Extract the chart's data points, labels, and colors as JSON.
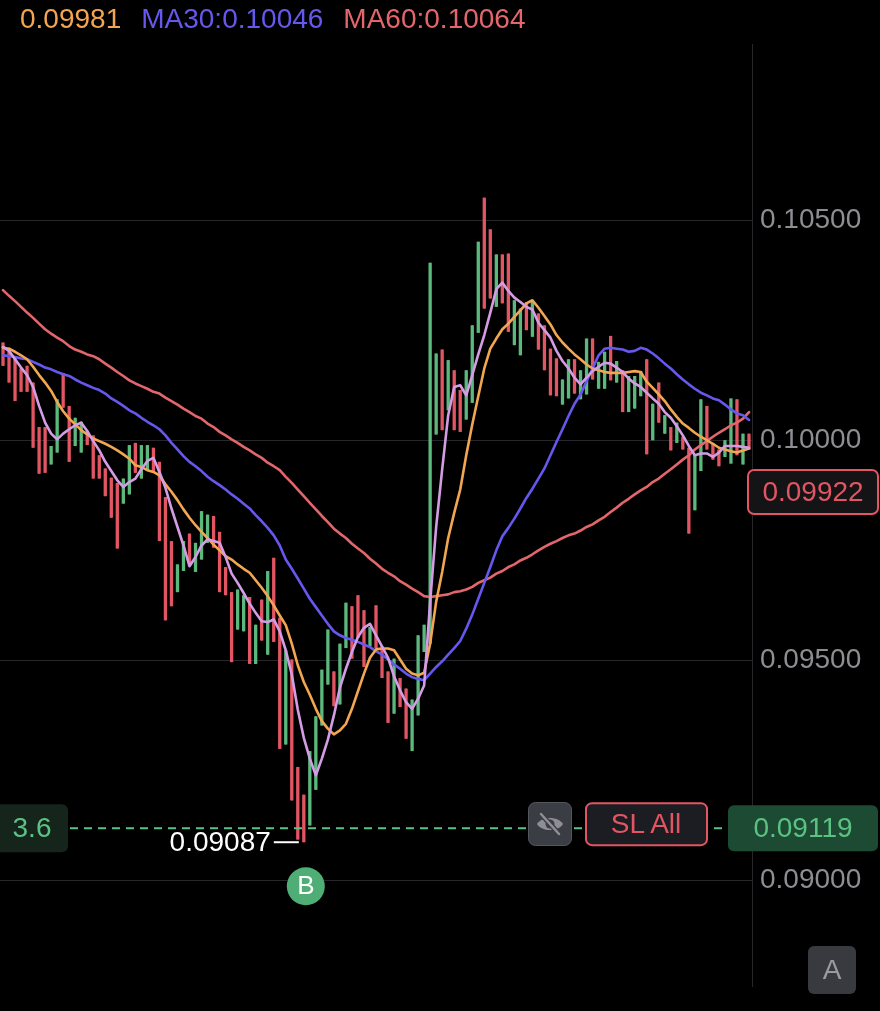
{
  "chart_data": {
    "type": "candlestick",
    "categories": [
      null,
      null,
      null,
      null,
      null,
      null,
      null,
      null,
      null,
      null,
      null,
      null,
      null,
      null,
      null,
      null,
      null,
      null,
      null,
      null,
      null,
      null,
      null,
      null,
      null,
      null,
      null,
      null,
      null,
      null,
      null,
      null,
      null,
      null,
      null,
      null,
      null,
      null,
      null,
      null,
      null,
      null,
      null,
      null,
      null,
      null,
      null,
      null,
      null,
      null,
      null,
      null,
      null,
      null,
      null,
      null,
      null,
      null,
      null,
      null,
      null,
      null,
      null,
      null,
      null,
      null,
      null,
      null,
      null,
      null,
      null,
      null,
      null,
      null,
      null,
      null,
      null,
      null,
      null,
      null,
      null,
      null,
      null,
      null,
      null,
      null,
      null,
      null,
      null,
      null,
      null,
      null,
      null,
      null,
      null,
      null,
      null,
      null,
      null,
      null,
      null,
      null,
      null,
      null,
      null,
      null,
      null,
      null,
      null,
      null,
      null,
      null,
      null,
      null,
      null,
      null,
      null,
      null,
      null,
      null,
      null,
      null,
      null,
      null,
      null
    ],
    "ohlc": [
      [
        0.10222,
        0.10222,
        0.10169,
        0.10169
      ],
      [
        0.1021,
        0.1021,
        0.10131,
        0.10131
      ],
      [
        0.10191,
        0.10191,
        0.10089,
        0.10089
      ],
      [
        0.10163,
        0.10163,
        0.1011,
        0.1011
      ],
      [
        0.10169,
        0.10169,
        0.1011,
        0.1011
      ],
      [
        0.10131,
        0.10131,
        0.09983,
        0.09983
      ],
      [
        0.1003,
        0.1003,
        0.09924,
        0.09924
      ],
      [
        0.1003,
        0.1003,
        0.09926,
        0.09926
      ],
      [
        0.09945,
        0.09987,
        0.09945,
        0.09987
      ],
      [
        0.09972,
        0.10093,
        0.09972,
        0.10093
      ],
      [
        0.10153,
        0.10153,
        0.10074,
        0.10074
      ],
      [
        0.10078,
        0.10078,
        0.09951,
        0.09951
      ],
      [
        0.09987,
        0.10051,
        0.09987,
        0.10051
      ],
      [
        0.09972,
        0.10042,
        0.09972,
        0.10042
      ],
      [
        0.10021,
        0.10021,
        0.09989,
        0.09989
      ],
      [
        0.10011,
        0.10011,
        0.09913,
        0.09913
      ],
      [
        0.09966,
        0.09966,
        0.09913,
        0.09913
      ],
      [
        0.09936,
        0.09936,
        0.09873,
        0.09873
      ],
      [
        0.09915,
        0.09915,
        0.09824,
        0.09824
      ],
      [
        0.09903,
        0.09903,
        0.09754,
        0.09754
      ],
      [
        0.09856,
        0.09913,
        0.09856,
        0.09913
      ],
      [
        0.09877,
        0.09989,
        0.09877,
        0.09989
      ],
      [
        0.09994,
        0.09994,
        0.09926,
        0.09926
      ],
      [
        0.09913,
        0.09989,
        0.09913,
        0.09989
      ],
      [
        0.0993,
        0.09989,
        0.0993,
        0.09989
      ],
      [
        0.09983,
        0.09983,
        0.09926,
        0.09926
      ],
      [
        0.09951,
        0.09951,
        0.09771,
        0.09771
      ],
      [
        0.09871,
        0.09871,
        0.09591,
        0.09591
      ],
      [
        0.09771,
        0.09771,
        0.09623,
        0.09623
      ],
      [
        0.09655,
        0.09718,
        0.09655,
        0.09718
      ],
      [
        0.09703,
        0.09771,
        0.09703,
        0.09771
      ],
      [
        0.09788,
        0.09788,
        0.09714,
        0.09714
      ],
      [
        0.09701,
        0.09767,
        0.09701,
        0.09767
      ],
      [
        0.09729,
        0.09839,
        0.09729,
        0.09839
      ],
      [
        0.09767,
        0.09831,
        0.09767,
        0.09831
      ],
      [
        0.09828,
        0.09828,
        0.09756,
        0.09756
      ],
      [
        0.09792,
        0.09792,
        0.09655,
        0.09655
      ],
      [
        0.09712,
        0.09712,
        0.09648,
        0.09648
      ],
      [
        0.09655,
        0.09655,
        0.09496,
        0.09496
      ],
      [
        0.0957,
        0.09661,
        0.0957,
        0.09661
      ],
      [
        0.09566,
        0.09648,
        0.09566,
        0.09648
      ],
      [
        0.09644,
        0.09644,
        0.09492,
        0.09492
      ],
      [
        0.09492,
        0.09581,
        0.09492,
        0.09581
      ],
      [
        0.09638,
        0.09638,
        0.09545,
        0.09545
      ],
      [
        0.09513,
        0.09703,
        0.09513,
        0.09703
      ],
      [
        0.09733,
        0.09733,
        0.09542,
        0.09542
      ],
      [
        0.09597,
        0.09597,
        0.09299,
        0.09299
      ],
      [
        0.09309,
        0.09523,
        0.09309,
        0.09523
      ],
      [
        0.09502,
        0.09502,
        0.09182,
        0.09182
      ],
      [
        0.09258,
        0.09258,
        0.09093,
        0.09093
      ],
      [
        0.09195,
        0.09195,
        0.09087,
        0.09087
      ],
      [
        0.09125,
        0.09294,
        0.09125,
        0.09294
      ],
      [
        0.09206,
        0.09373,
        0.09206,
        0.09373
      ],
      [
        0.09352,
        0.09479,
        0.09352,
        0.09479
      ],
      [
        0.09445,
        0.0957,
        0.09445,
        0.0957
      ],
      [
        0.09475,
        0.09475,
        0.09396,
        0.09396
      ],
      [
        0.094,
        0.09538,
        0.094,
        0.09538
      ],
      [
        0.09528,
        0.09631,
        0.09528,
        0.09631
      ],
      [
        0.09623,
        0.09623,
        0.09504,
        0.09504
      ],
      [
        0.09648,
        0.09648,
        0.09551,
        0.09551
      ],
      [
        0.09614,
        0.09614,
        0.09485,
        0.09485
      ],
      [
        0.09532,
        0.09576,
        0.09532,
        0.09576
      ],
      [
        0.09625,
        0.09625,
        0.09528,
        0.09528
      ],
      [
        0.09532,
        0.09532,
        0.0946,
        0.0946
      ],
      [
        0.09475,
        0.09475,
        0.09358,
        0.09358
      ],
      [
        0.09379,
        0.09504,
        0.09379,
        0.09504
      ],
      [
        0.0946,
        0.0946,
        0.09394,
        0.09394
      ],
      [
        0.09436,
        0.09436,
        0.09322,
        0.09322
      ],
      [
        0.09294,
        0.09411,
        0.09294,
        0.09411
      ],
      [
        0.09375,
        0.09557,
        0.09375,
        0.09557
      ],
      [
        0.09519,
        0.09581,
        0.09519,
        0.09581
      ],
      [
        0.09538,
        0.10403,
        0.09538,
        0.10403
      ],
      [
        0.10013,
        0.10197,
        0.10013,
        0.10197
      ],
      [
        0.10206,
        0.10206,
        0.10023,
        0.10023
      ],
      [
        0.10068,
        0.10182,
        0.10068,
        0.10182
      ],
      [
        0.10159,
        0.10159,
        0.10023,
        0.10023
      ],
      [
        0.10114,
        0.10114,
        0.10019,
        0.10019
      ],
      [
        0.10047,
        0.10159,
        0.10047,
        0.10159
      ],
      [
        0.10085,
        0.10261,
        0.10085,
        0.10261
      ],
      [
        0.10244,
        0.10451,
        0.10244,
        0.10451
      ],
      [
        0.10551,
        0.10551,
        0.10299,
        0.10299
      ],
      [
        0.10479,
        0.10479,
        0.10322,
        0.10322
      ],
      [
        0.10303,
        0.10422,
        0.10303,
        0.10422
      ],
      [
        0.10422,
        0.10422,
        0.10311,
        0.10311
      ],
      [
        0.10424,
        0.10424,
        0.10246,
        0.10246
      ],
      [
        0.10216,
        0.10318,
        0.10216,
        0.10318
      ],
      [
        0.10193,
        0.10299,
        0.10193,
        0.10299
      ],
      [
        0.10314,
        0.10314,
        0.1025,
        0.1025
      ],
      [
        0.10235,
        0.10314,
        0.10235,
        0.10314
      ],
      [
        0.10288,
        0.10288,
        0.10206,
        0.10206
      ],
      [
        0.10261,
        0.10261,
        0.10159,
        0.10159
      ],
      [
        0.10208,
        0.10208,
        0.10102,
        0.10102
      ],
      [
        0.10186,
        0.10186,
        0.101,
        0.101
      ],
      [
        0.10081,
        0.10138,
        0.10081,
        0.10138
      ],
      [
        0.10095,
        0.10184,
        0.10095,
        0.10184
      ],
      [
        0.10184,
        0.10184,
        0.10106,
        0.10106
      ],
      [
        0.10093,
        0.10159,
        0.10093,
        0.10159
      ],
      [
        0.10104,
        0.10231,
        0.10104,
        0.10231
      ],
      [
        0.10231,
        0.10231,
        0.10138,
        0.10138
      ],
      [
        0.10117,
        0.10178,
        0.10117,
        0.10178
      ],
      [
        0.10117,
        0.10201,
        0.10117,
        0.10201
      ],
      [
        0.10237,
        0.10237,
        0.10136,
        0.10136
      ],
      [
        0.10131,
        0.1018,
        0.10131,
        0.1018
      ],
      [
        0.10159,
        0.10159,
        0.10064,
        0.10064
      ],
      [
        0.10064,
        0.10146,
        0.10064,
        0.10146
      ],
      [
        0.10072,
        0.10146,
        0.10072,
        0.10146
      ],
      [
        0.101,
        0.10157,
        0.101,
        0.10157
      ],
      [
        0.10184,
        0.10184,
        0.09968,
        0.09968
      ],
      [
        0.1,
        0.10083,
        0.1,
        0.10083
      ],
      [
        0.10131,
        0.10131,
        0.1004,
        0.1004
      ],
      [
        0.10015,
        0.10057,
        0.10015,
        0.10057
      ],
      [
        0.1003,
        0.1003,
        0.09977,
        0.09977
      ],
      [
        0.09994,
        0.1004,
        0.09994,
        0.1004
      ],
      [
        0.10008,
        0.10008,
        0.09979,
        0.09979
      ],
      [
        0.09983,
        0.09983,
        0.09788,
        0.09788
      ],
      [
        0.09841,
        0.09968,
        0.09841,
        0.09968
      ],
      [
        0.0993,
        0.10093,
        0.0993,
        0.10093
      ],
      [
        0.10078,
        0.10078,
        0.09979,
        0.09979
      ],
      [
        0.09994,
        0.09994,
        0.09956,
        0.09956
      ],
      [
        0.09979,
        0.09979,
        0.09941,
        0.09941
      ],
      [
        0.09962,
        0.1,
        0.09962,
        0.1
      ],
      [
        0.09947,
        0.10095,
        0.09947,
        0.10095
      ],
      [
        0.10093,
        0.10093,
        0.09966,
        0.09966
      ],
      [
        0.09945,
        0.10015,
        0.09945,
        0.10015
      ],
      [
        0.10015,
        0.10015,
        0.09979,
        0.09979
      ]
    ],
    "colors": [
      "#e25563",
      "#e25563",
      "#e25563",
      "#e25563",
      "#e25563",
      "#e25563",
      "#e25563",
      "#e25563",
      "#5bb97e",
      "#5bb97e",
      "#e25563",
      "#e25563",
      "#5bb97e",
      "#5bb97e",
      "#e25563",
      "#e25563",
      "#e25563",
      "#e25563",
      "#e25563",
      "#e25563",
      "#5bb97e",
      "#5bb97e",
      "#e25563",
      "#5bb97e",
      "#5bb97e",
      "#e25563",
      "#e25563",
      "#e25563",
      "#e25563",
      "#5bb97e",
      "#5bb97e",
      "#e25563",
      "#5bb97e",
      "#5bb97e",
      "#5bb97e",
      "#e25563",
      "#e25563",
      "#e25563",
      "#e25563",
      "#5bb97e",
      "#5bb97e",
      "#e25563",
      "#5bb97e",
      "#e25563",
      "#5bb97e",
      "#e25563",
      "#e25563",
      "#5bb97e",
      "#e25563",
      "#e25563",
      "#e25563",
      "#5bb97e",
      "#5bb97e",
      "#5bb97e",
      "#5bb97e",
      "#e25563",
      "#5bb97e",
      "#5bb97e",
      "#e25563",
      "#e25563",
      "#e25563",
      "#5bb97e",
      "#e25563",
      "#e25563",
      "#e25563",
      "#5bb97e",
      "#e25563",
      "#e25563",
      "#5bb97e",
      "#5bb97e",
      "#5bb97e",
      "#5bb97e",
      "#5bb97e",
      "#e25563",
      "#5bb97e",
      "#e25563",
      "#e25563",
      "#5bb97e",
      "#5bb97e",
      "#5bb97e",
      "#e25563",
      "#e25563",
      "#5bb97e",
      "#e25563",
      "#e25563",
      "#5bb97e",
      "#5bb97e",
      "#e25563",
      "#5bb97e",
      "#e25563",
      "#e25563",
      "#e25563",
      "#e25563",
      "#5bb97e",
      "#5bb97e",
      "#e25563",
      "#5bb97e",
      "#5bb97e",
      "#e25563",
      "#5bb97e",
      "#5bb97e",
      "#e25563",
      "#5bb97e",
      "#e25563",
      "#5bb97e",
      "#5bb97e",
      "#5bb97e",
      "#e25563",
      "#5bb97e",
      "#e25563",
      "#5bb97e",
      "#e25563",
      "#5bb97e",
      "#e25563",
      "#e25563",
      "#5bb97e",
      "#5bb97e",
      "#e25563",
      "#e25563",
      "#e25563",
      "#5bb97e",
      "#5bb97e",
      "#e25563",
      "#5bb97e",
      "#e25563"
    ],
    "series": [
      {
        "type": "line",
        "color": "#d49de3",
        "values": [
          0.10212,
          0.10203,
          0.10184,
          0.10165,
          0.10148,
          0.10121,
          0.10078,
          0.1004,
          0.10015,
          0.10002,
          0.10015,
          0.10025,
          0.10034,
          0.1004,
          0.10021,
          0.09998,
          0.09977,
          0.09951,
          0.0993,
          0.09909,
          0.09894,
          0.09905,
          0.09913,
          0.09934,
          0.09953,
          0.0996,
          0.09928,
          0.09892,
          0.09845,
          0.09803,
          0.09761,
          0.09714,
          0.09735,
          0.09761,
          0.09775,
          0.09771,
          0.09767,
          0.09735,
          0.09697,
          0.09676,
          0.09653,
          0.09629,
          0.09608,
          0.09589,
          0.09587,
          0.09593,
          0.09566,
          0.09523,
          0.09468,
          0.09388,
          0.09324,
          0.09277,
          0.09239,
          0.09277,
          0.0932,
          0.09375,
          0.09438,
          0.09481,
          0.09519,
          0.09553,
          0.09574,
          0.09583,
          0.09557,
          0.09532,
          0.09506,
          0.09464,
          0.09432,
          0.09405,
          0.0939,
          0.09413,
          0.09443,
          0.09633,
          0.09803,
          0.09934,
          0.10057,
          0.10121,
          0.10125,
          0.10102,
          0.10148,
          0.10195,
          0.10239,
          0.1029,
          0.10343,
          0.10358,
          0.10339,
          0.10324,
          0.10314,
          0.10303,
          0.10297,
          0.10267,
          0.1025,
          0.10233,
          0.10203,
          0.1018,
          0.10163,
          0.10142,
          0.10127,
          0.10142,
          0.10157,
          0.10167,
          0.10176,
          0.10174,
          0.10165,
          0.10155,
          0.1014,
          0.10129,
          0.10121,
          0.10108,
          0.10095,
          0.10083,
          0.10064,
          0.10051,
          0.10032,
          0.10011,
          0.09987,
          0.09966,
          0.0997,
          0.0997,
          0.09962,
          0.09972,
          0.09987,
          0.09987,
          0.09987,
          0.09985,
          0.09983
        ]
      },
      {
        "type": "line",
        "name": "0.09981",
        "color": "#f2a652",
        "values": [
          0.1021,
          0.10208,
          0.10201,
          0.10193,
          0.10184,
          0.10167,
          0.10148,
          0.10131,
          0.10112,
          0.10087,
          0.10066,
          0.10049,
          0.10036,
          0.10023,
          0.10013,
          0.10004,
          0.09998,
          0.09992,
          0.09985,
          0.09977,
          0.09968,
          0.09958,
          0.09943,
          0.09939,
          0.09932,
          0.09928,
          0.0992,
          0.099,
          0.09883,
          0.09864,
          0.09843,
          0.09824,
          0.09807,
          0.09792,
          0.09778,
          0.09763,
          0.0975,
          0.09737,
          0.09729,
          0.09718,
          0.09708,
          0.09699,
          0.09682,
          0.09665,
          0.09646,
          0.09625,
          0.09602,
          0.0958,
          0.09538,
          0.09489,
          0.09451,
          0.09422,
          0.0939,
          0.09362,
          0.09345,
          0.09332,
          0.09341,
          0.09356,
          0.0939,
          0.0943,
          0.0947,
          0.09506,
          0.09525,
          0.09527,
          0.09527,
          0.09523,
          0.09502,
          0.09481,
          0.0947,
          0.09466,
          0.09472,
          0.09538,
          0.09633,
          0.09701,
          0.09778,
          0.09835,
          0.09888,
          0.09966,
          0.10036,
          0.101,
          0.10163,
          0.10208,
          0.10231,
          0.10252,
          0.10265,
          0.1028,
          0.10295,
          0.10311,
          0.10318,
          0.10301,
          0.10282,
          0.10263,
          0.10239,
          0.10222,
          0.10208,
          0.10195,
          0.10184,
          0.10172,
          0.10163,
          0.10159,
          0.10155,
          0.10153,
          0.10153,
          0.10153,
          0.10155,
          0.10157,
          0.10155,
          0.10133,
          0.10119,
          0.10104,
          0.10089,
          0.1007,
          0.10053,
          0.10038,
          0.10028,
          0.10017,
          0.10008,
          0.1,
          0.09992,
          0.09983,
          0.09979,
          0.09975,
          0.09972,
          0.09977,
          0.09981
        ]
      },
      {
        "type": "line",
        "name": "MA30:0.10046",
        "color": "#6658ee",
        "values": [
          0.10193,
          0.10191,
          0.10189,
          0.10186,
          0.10184,
          0.10178,
          0.10172,
          0.10165,
          0.10161,
          0.10155,
          0.1015,
          0.10146,
          0.10138,
          0.10131,
          0.10125,
          0.10119,
          0.10114,
          0.10106,
          0.10095,
          0.10087,
          0.10078,
          0.10068,
          0.10061,
          0.10051,
          0.10042,
          0.10034,
          0.10025,
          0.10011,
          0.09994,
          0.09979,
          0.09964,
          0.09951,
          0.09941,
          0.0993,
          0.09917,
          0.09907,
          0.09898,
          0.09888,
          0.09877,
          0.09867,
          0.09856,
          0.09845,
          0.0983,
          0.09816,
          0.09801,
          0.09784,
          0.09761,
          0.09729,
          0.09708,
          0.09686,
          0.09663,
          0.0964,
          0.09621,
          0.09602,
          0.09583,
          0.09566,
          0.09557,
          0.09551,
          0.09547,
          0.09542,
          0.09536,
          0.0953,
          0.09521,
          0.09513,
          0.09502,
          0.09491,
          0.09481,
          0.0947,
          0.09462,
          0.09458,
          0.09455,
          0.0947,
          0.09485,
          0.09498,
          0.09513,
          0.09528,
          0.09544,
          0.09572,
          0.09604,
          0.0964,
          0.09676,
          0.09712,
          0.0975,
          0.09782,
          0.09801,
          0.09822,
          0.09845,
          0.09869,
          0.0989,
          0.09913,
          0.09936,
          0.09966,
          0.09996,
          0.10025,
          0.10055,
          0.10083,
          0.10104,
          0.10134,
          0.10163,
          0.10193,
          0.10208,
          0.1021,
          0.10208,
          0.10206,
          0.10201,
          0.10203,
          0.1021,
          0.10206,
          0.10197,
          0.10186,
          0.10174,
          0.10163,
          0.1015,
          0.10138,
          0.10127,
          0.10117,
          0.10108,
          0.10102,
          0.10095,
          0.10091,
          0.10081,
          0.1007,
          0.10061,
          0.10057,
          0.10046
        ]
      },
      {
        "type": "line",
        "name": "MA60:0.10064",
        "color": "#e2666b",
        "values": [
          0.10341,
          0.10328,
          0.10316,
          0.10303,
          0.1029,
          0.10278,
          0.10265,
          0.10252,
          0.10242,
          0.10233,
          0.10225,
          0.10214,
          0.10206,
          0.10201,
          0.10195,
          0.10191,
          0.10184,
          0.10174,
          0.10165,
          0.10155,
          0.10146,
          0.10136,
          0.10129,
          0.10123,
          0.10117,
          0.1011,
          0.10106,
          0.10097,
          0.10089,
          0.10081,
          0.10072,
          0.10064,
          0.10055,
          0.10049,
          0.10038,
          0.1003,
          0.10019,
          0.10011,
          0.10002,
          0.09994,
          0.09985,
          0.09977,
          0.09968,
          0.0996,
          0.09949,
          0.09941,
          0.09932,
          0.09917,
          0.09903,
          0.09888,
          0.09873,
          0.09858,
          0.09843,
          0.09828,
          0.09814,
          0.09799,
          0.09788,
          0.09778,
          0.09765,
          0.09754,
          0.09744,
          0.09731,
          0.0972,
          0.09708,
          0.09699,
          0.09691,
          0.0968,
          0.09672,
          0.09663,
          0.09655,
          0.09646,
          0.09644,
          0.09646,
          0.09648,
          0.0965,
          0.09655,
          0.09657,
          0.09661,
          0.09667,
          0.09676,
          0.09682,
          0.09688,
          0.09697,
          0.09703,
          0.09712,
          0.09718,
          0.09727,
          0.09733,
          0.09741,
          0.0975,
          0.09758,
          0.09765,
          0.09771,
          0.09778,
          0.09784,
          0.09788,
          0.09795,
          0.09803,
          0.09809,
          0.09818,
          0.09826,
          0.09837,
          0.09847,
          0.09858,
          0.09867,
          0.09877,
          0.09886,
          0.09894,
          0.09905,
          0.09913,
          0.09924,
          0.09934,
          0.09945,
          0.09956,
          0.09966,
          0.09979,
          0.09989,
          0.09998,
          0.10008,
          0.10017,
          0.10025,
          0.10034,
          0.1004,
          0.10049,
          0.10064
        ]
      }
    ],
    "ylim": [
      0.0876,
      0.109
    ],
    "yticks": [
      {
        "value": 0.09,
        "label": "0.09000"
      },
      {
        "value": 0.095,
        "label": "0.09500"
      },
      {
        "value": 0.1,
        "label": "0.10000"
      },
      {
        "value": 0.105,
        "label": "0.10500"
      }
    ],
    "grid": "y",
    "tick_labels": "y",
    "legend": "top",
    "marker": "none",
    "ref_lines": [
      {
        "axis": "y",
        "value": 0.09119,
        "label": "0.09119",
        "color": "#5bc283",
        "line_style": "dashed"
      }
    ],
    "annotations": [
      "0.09922",
      "0.09087",
      "B",
      {
        "text": "3.6",
        "y": 0.09119
      },
      {
        "text": "SL All",
        "y": 0.09119
      },
      "A"
    ]
  }
}
